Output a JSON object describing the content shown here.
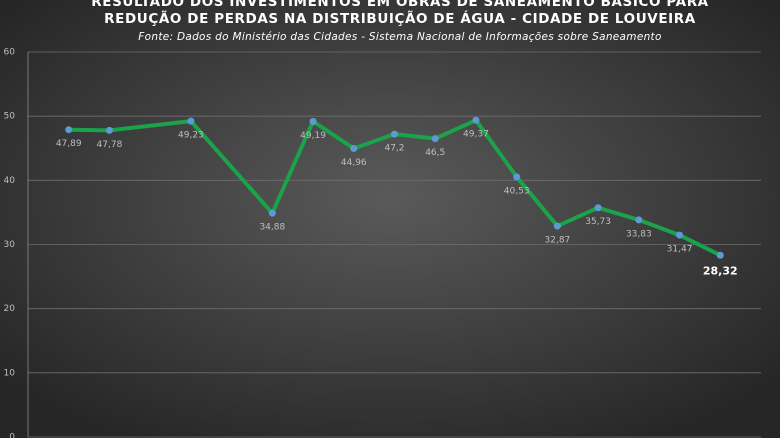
{
  "chart_data": {
    "type": "line",
    "title": "RESULTADO DOS INVESTIMENTOS EM OBRAS DE SANEAMENTO BÁSICO PARA",
    "title_line2": "REDUÇÃO DE PERDAS NA DISTRIBUIÇÃO DE ÁGUA - CIDADE DE LOUVEIRA",
    "subtitle": "Fonte: Dados do Ministério das Cidades - Sistema Nacional de Informações sobre Saneamento",
    "x": [
      1,
      2,
      4,
      6,
      7,
      8,
      9,
      10,
      11,
      12,
      13,
      14,
      15,
      16,
      17
    ],
    "xlim": [
      0,
      18
    ],
    "series": [
      {
        "color": "#1aa34a",
        "marker_color": "#5b9bd5",
        "values": [
          47.89,
          47.78,
          49.23,
          34.88,
          49.19,
          44.96,
          47.2,
          46.5,
          49.37,
          40.53,
          32.87,
          35.73,
          33.83,
          31.47,
          28.32
        ],
        "value_labels": [
          "47,89",
          "47,78",
          "49,23",
          "34,88",
          "49,19",
          "44,96",
          "47,2",
          "46,5",
          "49,37",
          "40,53",
          "32,87",
          "35,73",
          "33,83",
          "31,47",
          "28,32"
        ]
      }
    ],
    "ylim": [
      0,
      60
    ],
    "yticks": [
      0,
      10,
      20,
      30,
      40,
      50,
      60
    ],
    "grid": true
  }
}
